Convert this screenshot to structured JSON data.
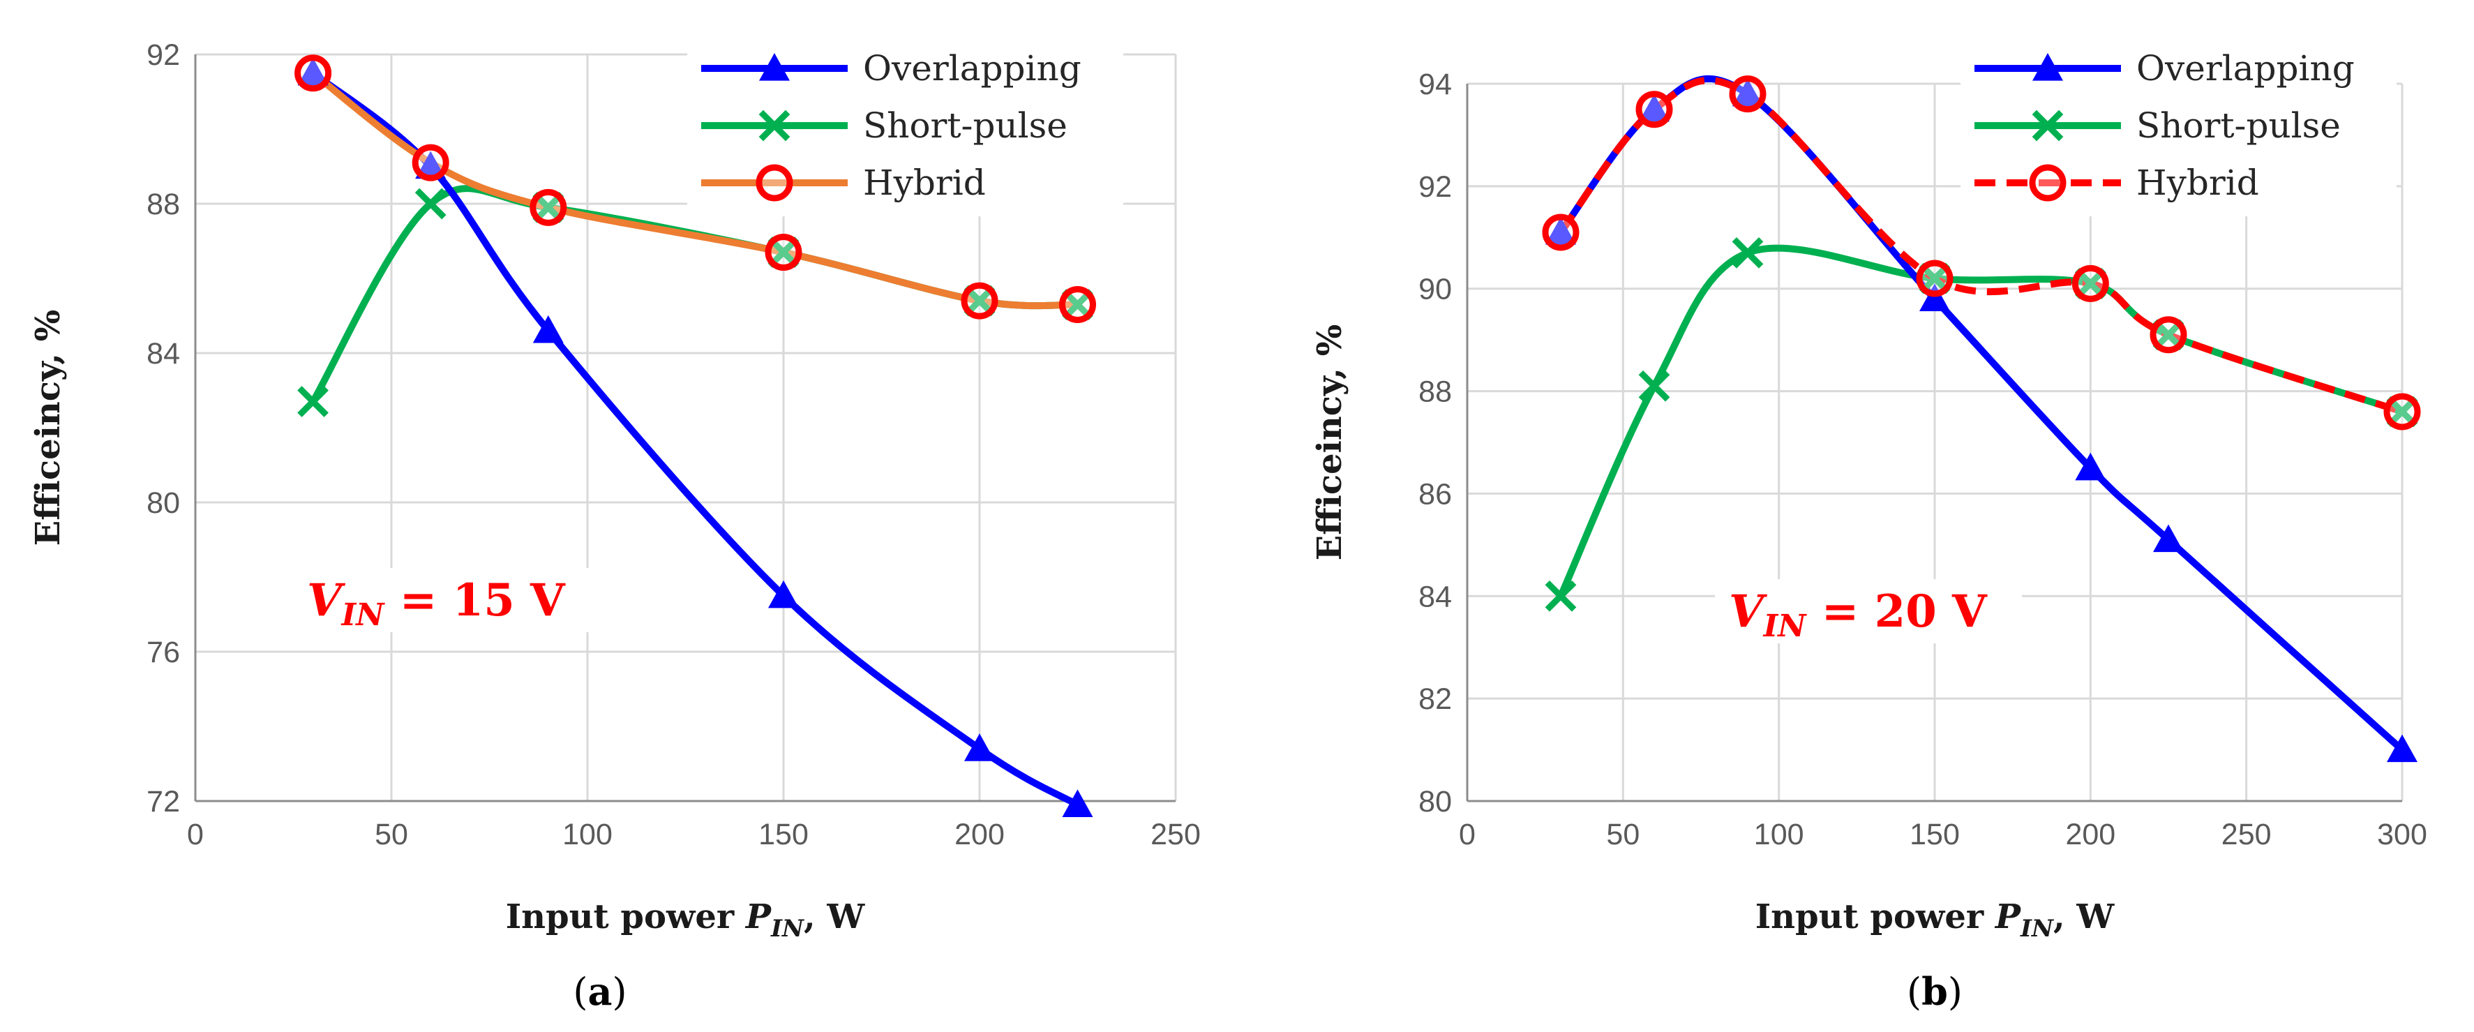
{
  "colors": {
    "overlapping": "#0000ff",
    "short_pulse": "#00b050",
    "hybrid_a": "#ed7d31",
    "hybrid_b": "#ff0000",
    "marker_red": "#ff0000",
    "grid": "#d9d9d9",
    "annotation": "#ff0000"
  },
  "chart_data": [
    {
      "panel_label": "(a)",
      "type": "line",
      "title": "",
      "xlabel": "Input power P_IN, W",
      "xlabel_main": "Input power ",
      "xlabel_var": "P",
      "xlabel_sub": "IN",
      "xlabel_tail": ", W",
      "ylabel": "Efficeincy, %",
      "xlim": [
        0,
        250
      ],
      "ylim": [
        72,
        92
      ],
      "xticks": [
        0,
        50,
        100,
        150,
        200,
        250
      ],
      "yticks": [
        72,
        76,
        80,
        84,
        88,
        92
      ],
      "grid": true,
      "legend_position": "top-right",
      "annotation": {
        "var": "V",
        "sub": "IN",
        "text": " = 15 V"
      },
      "series": [
        {
          "name": "Overlapping",
          "marker": "triangle",
          "x": [
            30,
            60,
            90,
            150,
            200,
            225
          ],
          "values": [
            91.5,
            89.0,
            84.6,
            77.5,
            73.4,
            71.9
          ]
        },
        {
          "name": "Short-pulse",
          "marker": "x",
          "x": [
            30,
            60,
            90,
            150,
            200,
            225
          ],
          "values": [
            82.7,
            88.0,
            87.9,
            86.7,
            85.4,
            85.3
          ]
        },
        {
          "name": "Hybrid",
          "marker": "circle",
          "x": [
            30,
            60,
            90,
            150,
            200,
            225
          ],
          "values": [
            91.5,
            89.1,
            87.9,
            86.7,
            85.4,
            85.3
          ]
        }
      ]
    },
    {
      "panel_label": "(b)",
      "type": "line",
      "title": "",
      "xlabel": "Input power P_IN, W",
      "xlabel_main": "Input power ",
      "xlabel_var": "P",
      "xlabel_sub": "IN",
      "xlabel_tail": ", W",
      "ylabel": "Efficeincy, %",
      "xlim": [
        0,
        300
      ],
      "ylim": [
        80,
        94
      ],
      "xticks": [
        0,
        50,
        100,
        150,
        200,
        250,
        300
      ],
      "yticks": [
        80,
        82,
        84,
        86,
        88,
        90,
        92,
        94
      ],
      "grid": true,
      "legend_position": "top-right",
      "annotation": {
        "var": "V",
        "sub": "IN",
        "text": " = 20 V"
      },
      "series": [
        {
          "name": "Overlapping",
          "marker": "triangle",
          "x": [
            30,
            60,
            90,
            150,
            200,
            225,
            300
          ],
          "values": [
            91.1,
            93.5,
            93.8,
            89.8,
            86.5,
            85.1,
            81.0
          ]
        },
        {
          "name": "Short-pulse",
          "marker": "x",
          "x": [
            30,
            60,
            90,
            150,
            200,
            225,
            300
          ],
          "values": [
            84.0,
            88.1,
            90.7,
            90.2,
            90.1,
            89.1,
            87.6
          ]
        },
        {
          "name": "Hybrid",
          "marker": "circle",
          "x": [
            30,
            60,
            90,
            150,
            200,
            225,
            300
          ],
          "values": [
            91.1,
            93.5,
            93.8,
            90.2,
            90.1,
            89.1,
            87.6
          ]
        }
      ]
    }
  ]
}
